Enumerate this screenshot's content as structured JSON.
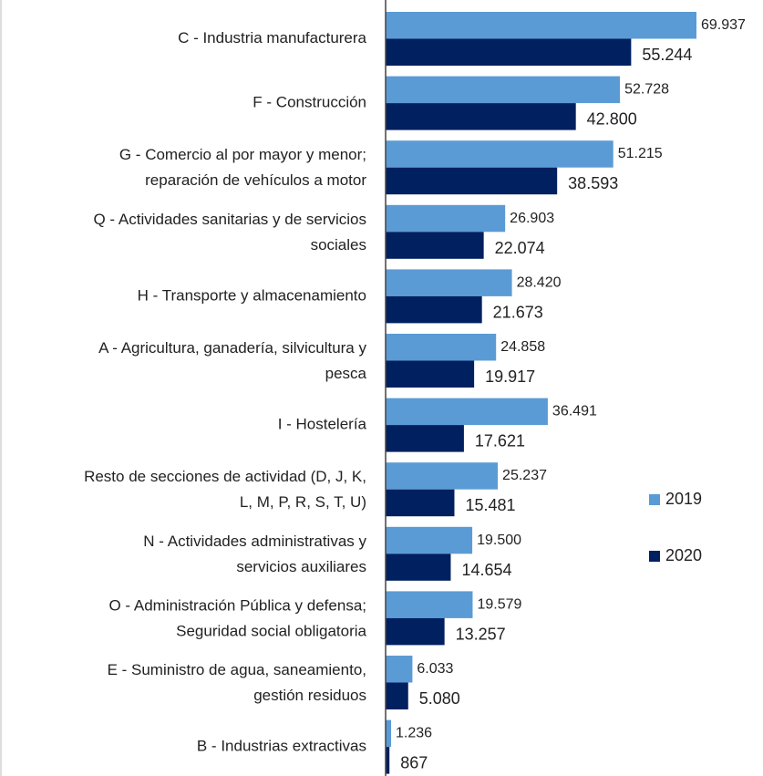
{
  "chart_data": {
    "type": "hbar",
    "categories": [
      [
        "C - Industria manufacturera"
      ],
      [
        "F - Construcción"
      ],
      [
        "G - Comercio al por mayor y menor;",
        "reparación de vehículos a motor"
      ],
      [
        "Q - Actividades sanitarias y de servicios",
        "sociales"
      ],
      [
        "H - Transporte y almacenamiento"
      ],
      [
        "A - Agricultura, ganadería, silvicultura y",
        "pesca"
      ],
      [
        "I - Hostelería"
      ],
      [
        "Resto de secciones de actividad (D, J, K,",
        "L, M, P, R, S, T, U)"
      ],
      [
        "N - Actividades administrativas y",
        "servicios auxiliares"
      ],
      [
        "O - Administración Pública y defensa;",
        "Seguridad social obligatoria"
      ],
      [
        "E - Suministro de agua, saneamiento,",
        "gestión residuos"
      ],
      [
        "B - Industrias extractivas"
      ]
    ],
    "series": [
      {
        "name": "2019",
        "color": "#5b9bd5",
        "label_color": "#5b9bd5",
        "values": [
          69937,
          52728,
          51215,
          26903,
          28420,
          24858,
          36491,
          25237,
          19500,
          19579,
          6033,
          1236
        ],
        "value_labels": [
          "69.937",
          "52.728",
          "51.215",
          "26.903",
          "28.420",
          "24.858",
          "36.491",
          "25.237",
          "19.500",
          "19.579",
          "6.033",
          "1.236"
        ]
      },
      {
        "name": "2020",
        "color": "#002060",
        "label_color": "#000000",
        "values": [
          55244,
          42800,
          38593,
          22074,
          21673,
          19917,
          17621,
          15481,
          14654,
          13257,
          5080,
          867
        ],
        "value_labels": [
          "55.244",
          "42.800",
          "38.593",
          "22.074",
          "21.673",
          "19.917",
          "17.621",
          "15.481",
          "14.654",
          "13.257",
          "5.080",
          "867"
        ]
      }
    ],
    "legend": "right"
  }
}
